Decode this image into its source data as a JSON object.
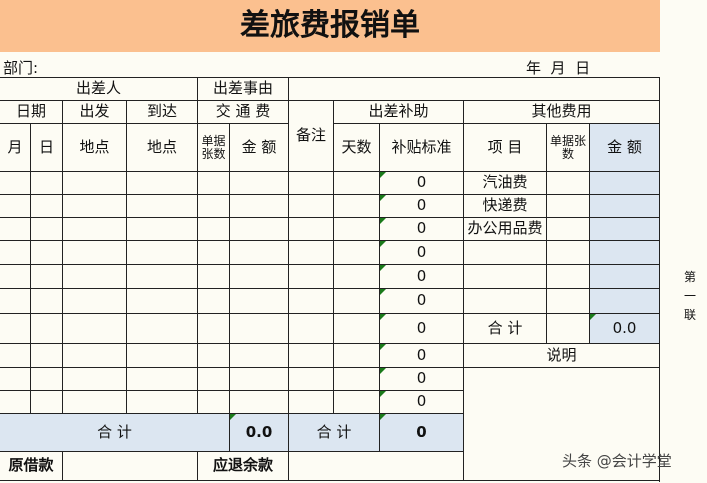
{
  "title": "差旅费报销单",
  "department_label": "部门:",
  "date_label": "年  月  日",
  "headers": {
    "traveler": "出差人",
    "reason": "出差事由",
    "date": "日期",
    "depart": "出发",
    "arrive": "到达",
    "transport": "交 通 费",
    "allowance": "出差补助",
    "other": "其他费用",
    "month": "月",
    "day": "日",
    "place_from": "地点",
    "place_to": "地点",
    "receipts": "单据张数",
    "amount": "金 额",
    "remark": "备注",
    "days": "天数",
    "standard": "补贴标准",
    "item": "项  目",
    "other_receipts": "单据张数",
    "other_amount": "金 额"
  },
  "allowance_values": [
    "0",
    "0",
    "0",
    "0",
    "0",
    "0",
    "0",
    "0",
    "0",
    "0"
  ],
  "other_items": [
    "汽油费",
    "快递费",
    "办公用品费"
  ],
  "other_total_label": "合 计",
  "other_total_value": "0.0",
  "note_label": "说明",
  "total_label": "合 计",
  "transport_total": "0.0",
  "allowance_total_label": "合 计",
  "allowance_total": "0",
  "loan_label": "原借款",
  "refund_label": "应退余款",
  "side_label": "第一联",
  "watermark": "头条 @会计学堂"
}
